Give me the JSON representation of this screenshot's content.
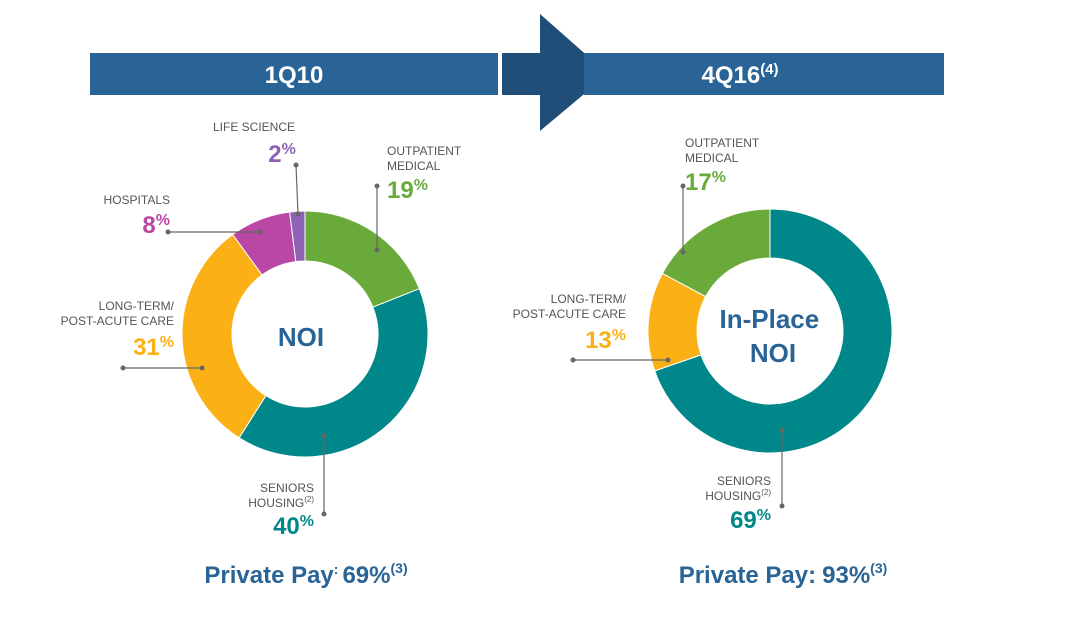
{
  "colors": {
    "banner": "#2a6496",
    "arrow": "#1f4e79",
    "outpatient": "#6aaa3a",
    "seniors": "#00878a",
    "ltpac": "#fbb116",
    "hospitals": "#b947a6",
    "life_science": "#8e63b5"
  },
  "banners": {
    "left_label": "1Q10",
    "right_label": "4Q16",
    "right_sup": "(4)"
  },
  "chart_data": [
    {
      "type": "pie",
      "center_label": "NOI",
      "slices": [
        {
          "label": "OUTPATIENT MEDICAL",
          "value": 19,
          "color": "#6aaa3a"
        },
        {
          "label": "SENIORS HOUSING",
          "label_sup": "(2)",
          "value": 40,
          "color": "#00878a"
        },
        {
          "label": "LONG-TERM/ POST-ACUTE CARE",
          "value": 31,
          "color": "#fbb116"
        },
        {
          "label": "HOSPITALS",
          "value": 8,
          "color": "#b947a6"
        },
        {
          "label": "LIFE SCIENCE",
          "value": 2,
          "color": "#8e63b5"
        }
      ],
      "footer": {
        "label": "Private Pay",
        "colon": ":",
        "value": "69%",
        "sup": "(3)"
      }
    },
    {
      "type": "pie",
      "center_label": "In-Place NOI",
      "center_lines": [
        "In-Place",
        "NOI"
      ],
      "slices": [
        {
          "label": "SENIORS HOUSING",
          "label_sup": "(2)",
          "value": 69,
          "color": "#00878a"
        },
        {
          "label": "LONG-TERM/ POST-ACUTE CARE",
          "value": 13,
          "color": "#fbb116"
        },
        {
          "label": "OUTPATIENT MEDICAL",
          "value": 17,
          "color": "#6aaa3a"
        }
      ],
      "footer": {
        "label": "Private Pay",
        "colon": ":",
        "value": "93%",
        "sup": "(3)"
      }
    }
  ]
}
